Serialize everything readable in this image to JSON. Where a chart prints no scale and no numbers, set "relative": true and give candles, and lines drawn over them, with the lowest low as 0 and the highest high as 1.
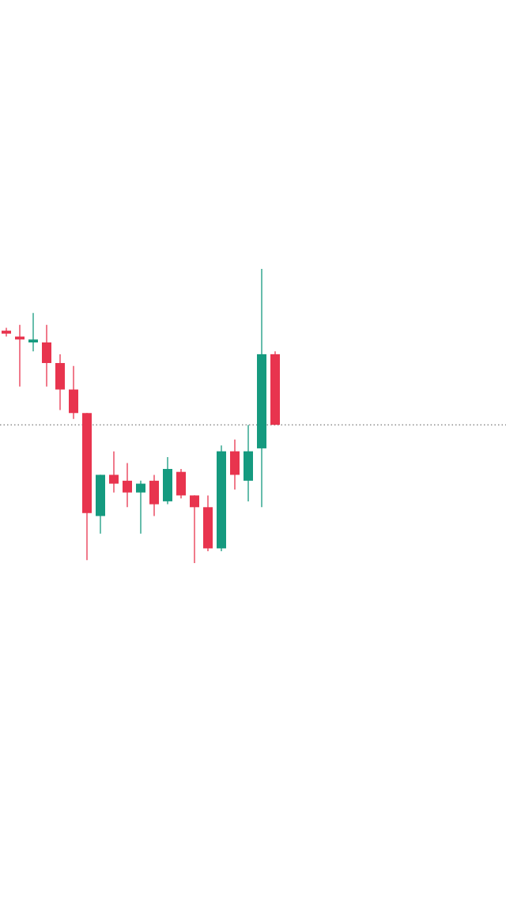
{
  "chart_data": {
    "type": "candlestick",
    "relative": true,
    "categories": [
      null,
      null,
      null,
      null,
      null,
      null,
      null,
      null,
      null,
      null,
      null,
      null,
      null,
      null,
      null,
      null,
      null,
      null,
      null,
      null,
      null
    ],
    "ohlc": [
      [
        0.79,
        0.8,
        0.77,
        0.78
      ],
      [
        0.77,
        0.81,
        0.6,
        0.76
      ],
      [
        0.75,
        0.85,
        0.72,
        0.76
      ],
      [
        0.75,
        0.81,
        0.6,
        0.68
      ],
      [
        0.68,
        0.71,
        0.52,
        0.59
      ],
      [
        0.59,
        0.67,
        0.49,
        0.51
      ],
      [
        0.51,
        0.51,
        0.01,
        0.17
      ],
      [
        0.16,
        0.3,
        0.1,
        0.3
      ],
      [
        0.3,
        0.38,
        0.24,
        0.27
      ],
      [
        0.28,
        0.34,
        0.19,
        0.24
      ],
      [
        0.24,
        0.28,
        0.1,
        0.27
      ],
      [
        0.28,
        0.3,
        0.16,
        0.2
      ],
      [
        0.21,
        0.36,
        0.2,
        0.32
      ],
      [
        0.31,
        0.32,
        0.22,
        0.23
      ],
      [
        0.23,
        0.23,
        0,
        0.19
      ],
      [
        0.19,
        0.23,
        0.04,
        0.05
      ],
      [
        0.05,
        0.4,
        0.04,
        0.38
      ],
      [
        0.38,
        0.42,
        0.25,
        0.3
      ],
      [
        0.28,
        0.47,
        0.21,
        0.38
      ],
      [
        0.39,
        1,
        0.19,
        0.71
      ],
      [
        0.71,
        0.72,
        0.47,
        0.47
      ]
    ],
    "colors": [
      "#e8344e",
      "#e8344e",
      "#159a7f",
      "#e8344e",
      "#e8344e",
      "#e8344e",
      "#e8344e",
      "#159a7f",
      "#e8344e",
      "#e8344e",
      "#159a7f",
      "#e8344e",
      "#159a7f",
      "#e8344e",
      "#e8344e",
      "#e8344e",
      "#159a7f",
      "#e8344e",
      "#159a7f",
      "#159a7f",
      "#e8344e"
    ],
    "ref_lines": [
      {
        "axis": "y",
        "value": 0.47,
        "color": "#555555",
        "line_style": "dotted"
      }
    ]
  }
}
